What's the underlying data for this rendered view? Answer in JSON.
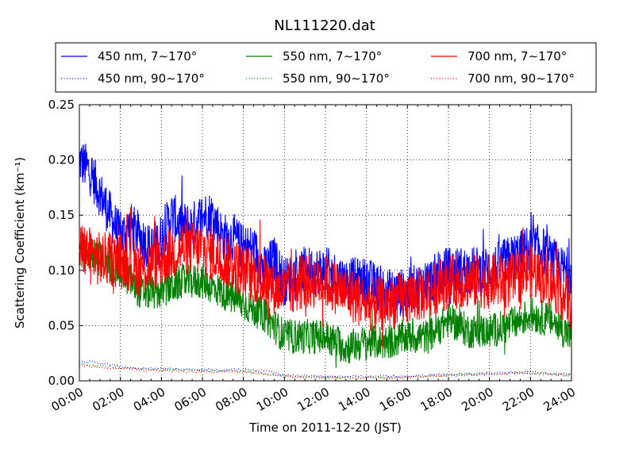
{
  "chart_data": {
    "type": "line",
    "title": "NL111220.dat",
    "xlabel": "Time on 2011-12-20 (JST)",
    "ylabel": "Scattering Coefficient (km⁻¹)",
    "x_range_hours": [
      0,
      24
    ],
    "ylim": [
      0.0,
      0.25
    ],
    "x_ticks": [
      "00:00",
      "02:00",
      "04:00",
      "06:00",
      "08:00",
      "10:00",
      "12:00",
      "14:00",
      "16:00",
      "18:00",
      "20:00",
      "22:00",
      "24:00"
    ],
    "y_ticks": [
      "0.00",
      "0.05",
      "0.10",
      "0.15",
      "0.20",
      "0.25"
    ],
    "grid": true,
    "legend_position": "top (above plot, 3 columns)",
    "series": [
      {
        "name": "450 nm, 7∼170°",
        "color": "#0000ff",
        "style": "solid",
        "noise": 0.022,
        "x": [
          0,
          0.5,
          1,
          1.5,
          2,
          2.5,
          3,
          3.5,
          4,
          4.5,
          5,
          5.5,
          6,
          6.5,
          7,
          7.5,
          8,
          8.5,
          9,
          9.5,
          10,
          11,
          12,
          13,
          14,
          15,
          16,
          17,
          18,
          19,
          20,
          21,
          22,
          22.5,
          23,
          23.5,
          24
        ],
        "y": [
          0.2,
          0.19,
          0.17,
          0.15,
          0.13,
          0.14,
          0.13,
          0.12,
          0.13,
          0.15,
          0.14,
          0.14,
          0.15,
          0.15,
          0.13,
          0.13,
          0.12,
          0.12,
          0.1,
          0.11,
          0.09,
          0.1,
          0.1,
          0.09,
          0.09,
          0.08,
          0.08,
          0.09,
          0.1,
          0.1,
          0.1,
          0.11,
          0.12,
          0.12,
          0.11,
          0.1,
          0.1
        ]
      },
      {
        "name": "450 nm, 90∼170°",
        "color": "#0000ff",
        "style": "dotted",
        "noise": 0.001,
        "x": [
          0,
          1,
          2,
          3,
          4,
          5,
          6,
          7,
          8,
          9,
          10,
          12,
          14,
          16,
          18,
          20,
          22,
          24
        ],
        "y": [
          0.018,
          0.016,
          0.013,
          0.011,
          0.011,
          0.011,
          0.01,
          0.01,
          0.01,
          0.01,
          0.005,
          0.004,
          0.004,
          0.004,
          0.006,
          0.007,
          0.008,
          0.006
        ]
      },
      {
        "name": "550 nm, 7∼170°",
        "color": "#008000",
        "style": "solid",
        "noise": 0.016,
        "x": [
          0,
          1,
          2,
          3,
          4,
          5,
          6,
          7,
          8,
          9,
          10,
          11,
          12,
          13,
          14,
          15,
          16,
          17,
          18,
          19,
          20,
          21,
          22,
          23,
          24
        ],
        "y": [
          0.12,
          0.11,
          0.1,
          0.08,
          0.08,
          0.09,
          0.09,
          0.08,
          0.07,
          0.06,
          0.04,
          0.04,
          0.04,
          0.03,
          0.035,
          0.035,
          0.04,
          0.04,
          0.055,
          0.045,
          0.045,
          0.05,
          0.06,
          0.055,
          0.04
        ]
      },
      {
        "name": "550 nm, 90∼170°",
        "color": "#008000",
        "style": "dotted",
        "noise": 0.001,
        "x": [
          0,
          2,
          4,
          6,
          8,
          10,
          12,
          14,
          16,
          18,
          20,
          22,
          24
        ],
        "y": [
          0.015,
          0.012,
          0.01,
          0.009,
          0.009,
          0.004,
          0.003,
          0.003,
          0.003,
          0.005,
          0.006,
          0.007,
          0.005
        ]
      },
      {
        "name": "700 nm, 7∼170°",
        "color": "#ff0000",
        "style": "solid",
        "noise": 0.025,
        "x": [
          0,
          1,
          2,
          3,
          4,
          5,
          6,
          7,
          8,
          9,
          10,
          11,
          12,
          13,
          14,
          15,
          16,
          17,
          18,
          19,
          20,
          21,
          22,
          23,
          24
        ],
        "y": [
          0.12,
          0.11,
          0.11,
          0.1,
          0.11,
          0.12,
          0.12,
          0.11,
          0.1,
          0.09,
          0.08,
          0.09,
          0.09,
          0.08,
          0.07,
          0.07,
          0.075,
          0.08,
          0.09,
          0.09,
          0.09,
          0.09,
          0.1,
          0.09,
          0.07
        ]
      },
      {
        "name": "700 nm, 90∼170°",
        "color": "#ff0000",
        "style": "dotted",
        "noise": 0.001,
        "x": [
          0,
          2,
          4,
          6,
          8,
          10,
          12,
          14,
          16,
          18,
          20,
          22,
          24
        ],
        "y": [
          0.014,
          0.011,
          0.009,
          0.008,
          0.008,
          0.004,
          0.003,
          0.003,
          0.003,
          0.005,
          0.006,
          0.007,
          0.005
        ]
      }
    ]
  }
}
